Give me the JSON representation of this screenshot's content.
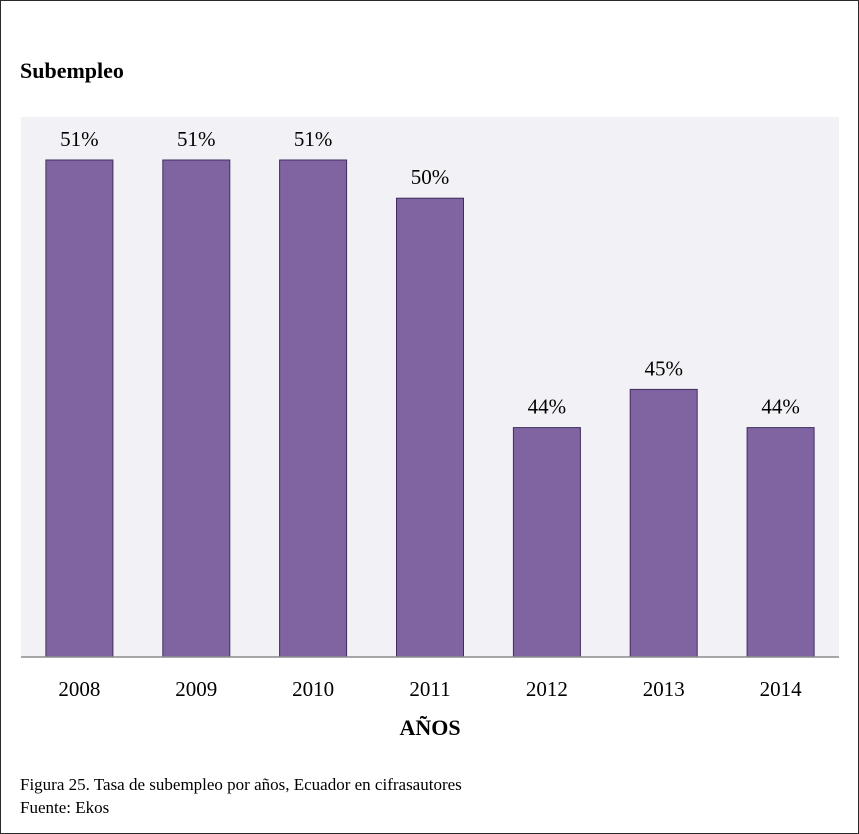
{
  "chart_data": {
    "type": "bar",
    "title": "Subempleo",
    "xlabel": "AÑOS",
    "ylabel": "",
    "categories": [
      "2008",
      "2009",
      "2010",
      "2011",
      "2012",
      "2013",
      "2014"
    ],
    "values": [
      51,
      51,
      51,
      50,
      44,
      45,
      44
    ],
    "data_labels": [
      "51%",
      "51%",
      "51%",
      "50%",
      "44%",
      "45%",
      "44%"
    ],
    "ylim": [
      38,
      51
    ],
    "grid": false,
    "colors": {
      "bar": "#8064a2",
      "bar_edge": "#3f2d5e",
      "plot_bg": "#f2f1f6",
      "axis": "#8c8c8c"
    }
  },
  "caption": {
    "line1": "Figura 25. Tasa de subempleo por años, Ecuador en cifrasautores",
    "line2": "Fuente: Ekos"
  }
}
